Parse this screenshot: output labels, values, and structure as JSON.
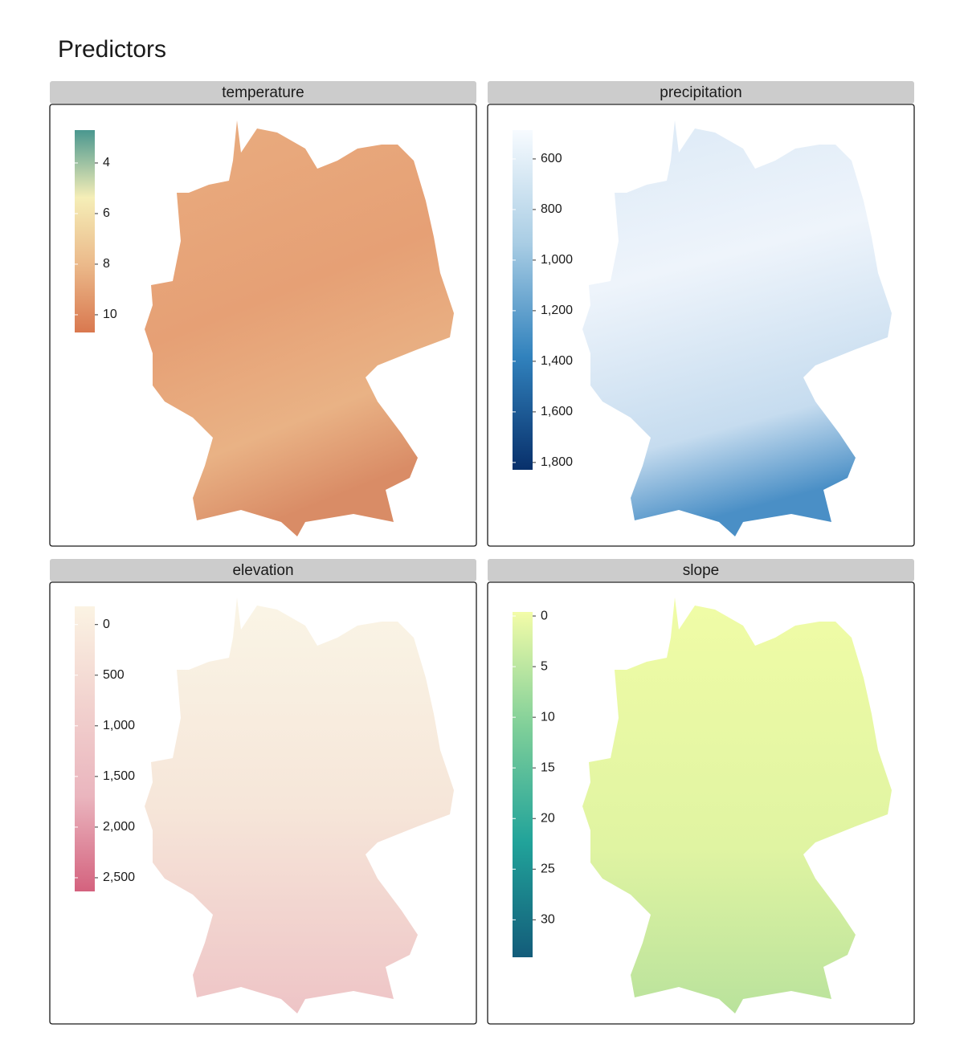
{
  "title": "Predictors",
  "panels": [
    {
      "title": "temperature",
      "range": [
        2.7,
        10.7
      ],
      "ticks": [
        4,
        6,
        8,
        10
      ],
      "colors": [
        "#4a978f",
        "#f5eeb7",
        "#ebb98a",
        "#d9784f"
      ]
    },
    {
      "title": "precipitation",
      "range": [
        486,
        1829
      ],
      "ticks": [
        600,
        800,
        {
          "value": 1000,
          "label": "1,000"
        },
        {
          "value": 1200,
          "label": "1,200"
        },
        {
          "value": 1400,
          "label": "1,400"
        },
        {
          "value": 1600,
          "label": "1,600"
        },
        {
          "value": 1800,
          "label": "1,800"
        }
      ],
      "colors": [
        "#f7fbff",
        "#a9cde4",
        "#3182bd",
        "#08306b"
      ]
    },
    {
      "title": "elevation",
      "range": [
        -180,
        2635
      ],
      "ticks": [
        0,
        500,
        {
          "value": 1000,
          "label": "1,000"
        },
        {
          "value": 1500,
          "label": "1,500"
        },
        {
          "value": 2000,
          "label": "2,000"
        },
        {
          "value": 2500,
          "label": "2,500"
        }
      ],
      "colors": [
        "#fbf3e3",
        "#f2d3cf",
        "#eab5be",
        "#d4627e"
      ]
    },
    {
      "title": "slope",
      "range": [
        -0.4,
        33.7
      ],
      "ticks": [
        0,
        5,
        10,
        15,
        20,
        25,
        30
      ],
      "colors": [
        "#f3fca8",
        "#7fcf99",
        "#21a39a",
        "#135c7a"
      ]
    }
  ]
}
